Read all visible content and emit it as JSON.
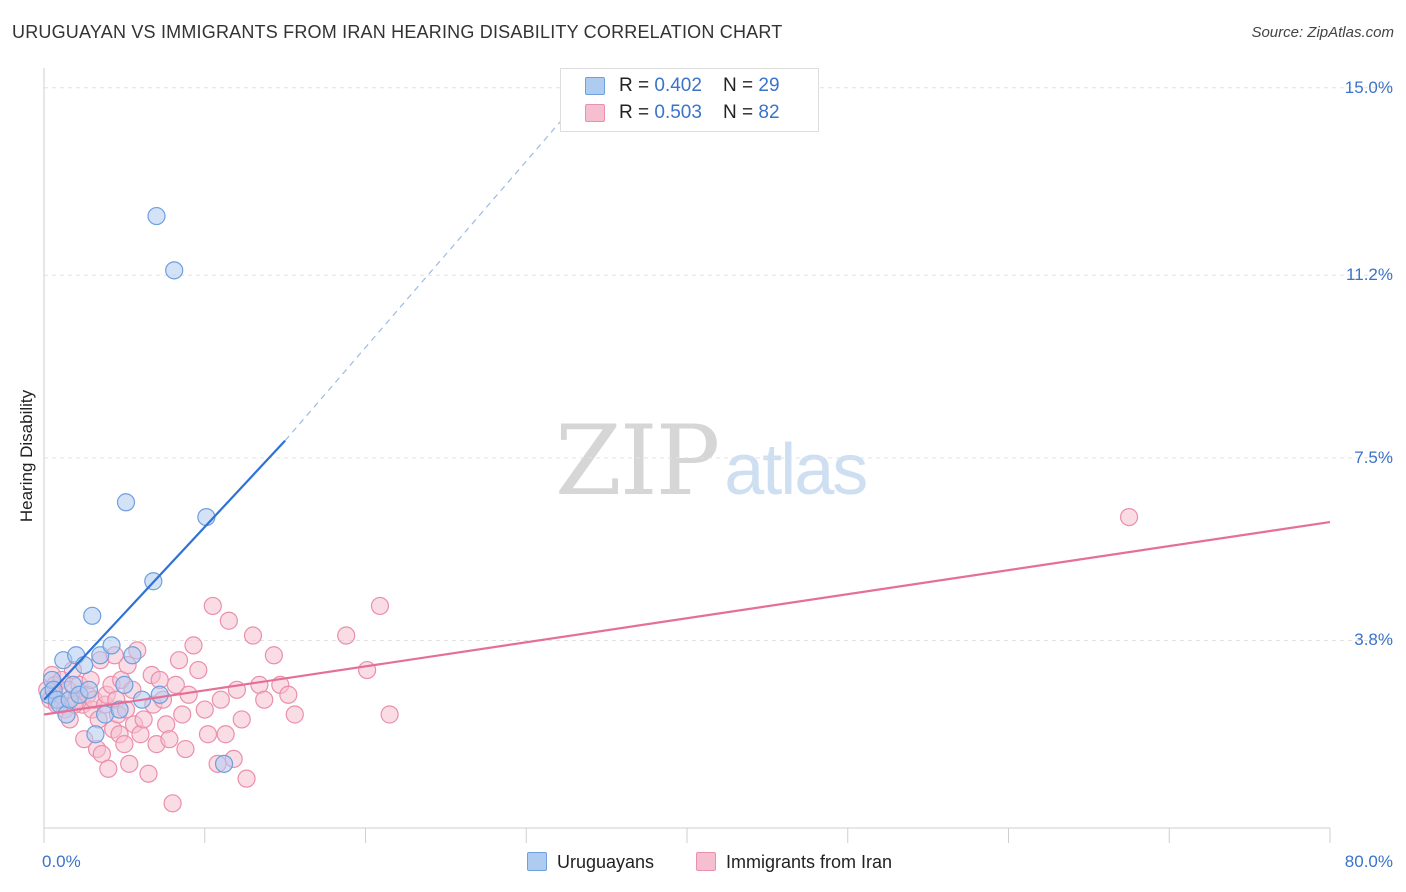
{
  "title": "URUGUAYAN VS IMMIGRANTS FROM IRAN HEARING DISABILITY CORRELATION CHART",
  "source": "Source: ZipAtlas.com",
  "watermark": {
    "zip": "ZIP",
    "atlas": "atlas"
  },
  "colors": {
    "blue_fill": "#aecbf0",
    "blue_stroke": "#6f9fdc",
    "blue_line": "#2f72d6",
    "pink_fill": "#f6bfd0",
    "pink_stroke": "#ea8fad",
    "pink_line": "#e56f97",
    "tick_text": "#3a73c9",
    "grid": "#e2e2e2"
  },
  "stats": [
    {
      "r_label": "R = ",
      "r_value": "0.402",
      "n_label": "N = ",
      "n_value": "29"
    },
    {
      "r_label": "R = ",
      "r_value": "0.503",
      "n_label": "N = ",
      "n_value": "82"
    }
  ],
  "legend": [
    {
      "label": "Uruguayans"
    },
    {
      "label": "Immigrants from Iran"
    }
  ],
  "chart_data": {
    "type": "scatter",
    "title": "URUGUAYAN VS IMMIGRANTS FROM IRAN HEARING DISABILITY CORRELATION CHART",
    "xlabel": "",
    "ylabel": "Hearing Disability",
    "xlim": [
      0,
      80
    ],
    "ylim": [
      0,
      15.4
    ],
    "y_ticks": [
      {
        "value": 3.8,
        "label": "3.8%"
      },
      {
        "value": 7.5,
        "label": "7.5%"
      },
      {
        "value": 11.2,
        "label": "11.2%"
      },
      {
        "value": 15.0,
        "label": "15.0%"
      }
    ],
    "x_ticks": [
      {
        "value": 0,
        "label": "0.0%"
      },
      {
        "value": 80,
        "label": "80.0%"
      }
    ],
    "series": [
      {
        "name": "Uruguayans",
        "R": 0.402,
        "N": 29,
        "points": [
          [
            0.3,
            2.7
          ],
          [
            0.5,
            3.0
          ],
          [
            0.6,
            2.8
          ],
          [
            0.8,
            2.6
          ],
          [
            1.0,
            2.5
          ],
          [
            1.2,
            3.4
          ],
          [
            1.4,
            2.3
          ],
          [
            1.6,
            2.6
          ],
          [
            1.8,
            2.9
          ],
          [
            2.0,
            3.5
          ],
          [
            2.2,
            2.7
          ],
          [
            2.5,
            3.3
          ],
          [
            2.8,
            2.8
          ],
          [
            3.0,
            4.3
          ],
          [
            3.2,
            1.9
          ],
          [
            3.5,
            3.5
          ],
          [
            3.8,
            2.3
          ],
          [
            4.2,
            3.7
          ],
          [
            4.7,
            2.4
          ],
          [
            5.0,
            2.9
          ],
          [
            5.1,
            6.6
          ],
          [
            5.5,
            3.5
          ],
          [
            6.1,
            2.6
          ],
          [
            6.8,
            5.0
          ],
          [
            7.0,
            12.4
          ],
          [
            7.2,
            2.7
          ],
          [
            8.1,
            11.3
          ],
          [
            10.1,
            6.3
          ],
          [
            11.2,
            1.3
          ]
        ],
        "trend": {
          "x0": 0,
          "y0": 2.6,
          "x1": 15,
          "y1": 7.85,
          "dashed_to": {
            "x": 35,
            "y": 15.4
          }
        }
      },
      {
        "name": "Immigrants from Iran",
        "R": 0.503,
        "N": 82,
        "points": [
          [
            0.2,
            2.8
          ],
          [
            0.4,
            2.6
          ],
          [
            0.5,
            3.1
          ],
          [
            0.7,
            2.9
          ],
          [
            0.8,
            2.5
          ],
          [
            1.0,
            2.7
          ],
          [
            1.1,
            3.0
          ],
          [
            1.3,
            2.4
          ],
          [
            1.5,
            2.8
          ],
          [
            1.6,
            2.2
          ],
          [
            1.8,
            3.2
          ],
          [
            2.0,
            2.6
          ],
          [
            2.2,
            2.9
          ],
          [
            2.4,
            2.5
          ],
          [
            2.5,
            1.8
          ],
          [
            2.7,
            2.7
          ],
          [
            2.9,
            3.0
          ],
          [
            3.0,
            2.4
          ],
          [
            3.1,
            2.6
          ],
          [
            3.3,
            1.6
          ],
          [
            3.4,
            2.2
          ],
          [
            3.5,
            3.4
          ],
          [
            3.6,
            1.5
          ],
          [
            3.8,
            2.5
          ],
          [
            3.9,
            2.7
          ],
          [
            4.0,
            1.2
          ],
          [
            4.2,
            2.9
          ],
          [
            4.3,
            2.0
          ],
          [
            4.4,
            3.5
          ],
          [
            4.5,
            2.6
          ],
          [
            4.6,
            2.3
          ],
          [
            4.7,
            1.9
          ],
          [
            4.8,
            3.0
          ],
          [
            5.0,
            1.7
          ],
          [
            5.1,
            2.4
          ],
          [
            5.2,
            3.3
          ],
          [
            5.3,
            1.3
          ],
          [
            5.5,
            2.8
          ],
          [
            5.6,
            2.1
          ],
          [
            5.8,
            3.6
          ],
          [
            6.0,
            1.9
          ],
          [
            6.2,
            2.2
          ],
          [
            6.5,
            1.1
          ],
          [
            6.7,
            3.1
          ],
          [
            6.8,
            2.5
          ],
          [
            7.0,
            1.7
          ],
          [
            7.2,
            3.0
          ],
          [
            7.4,
            2.6
          ],
          [
            7.6,
            2.1
          ],
          [
            7.8,
            1.8
          ],
          [
            8.0,
            0.5
          ],
          [
            8.2,
            2.9
          ],
          [
            8.4,
            3.4
          ],
          [
            8.6,
            2.3
          ],
          [
            8.8,
            1.6
          ],
          [
            9.0,
            2.7
          ],
          [
            9.3,
            3.7
          ],
          [
            9.6,
            3.2
          ],
          [
            10.0,
            2.4
          ],
          [
            10.2,
            1.9
          ],
          [
            10.5,
            4.5
          ],
          [
            10.8,
            1.3
          ],
          [
            11.0,
            2.6
          ],
          [
            11.3,
            1.9
          ],
          [
            11.5,
            4.2
          ],
          [
            11.8,
            1.4
          ],
          [
            12.0,
            2.8
          ],
          [
            12.3,
            2.2
          ],
          [
            12.6,
            1.0
          ],
          [
            13.0,
            3.9
          ],
          [
            13.4,
            2.9
          ],
          [
            13.7,
            2.6
          ],
          [
            14.3,
            3.5
          ],
          [
            14.7,
            2.9
          ],
          [
            15.2,
            2.7
          ],
          [
            15.6,
            2.3
          ],
          [
            18.8,
            3.9
          ],
          [
            20.1,
            3.2
          ],
          [
            20.9,
            4.5
          ],
          [
            21.5,
            2.3
          ],
          [
            67.5,
            6.3
          ],
          [
            1.9,
            2.5
          ]
        ],
        "trend": {
          "x0": 0,
          "y0": 2.3,
          "x1": 80,
          "y1": 6.2
        }
      }
    ]
  }
}
